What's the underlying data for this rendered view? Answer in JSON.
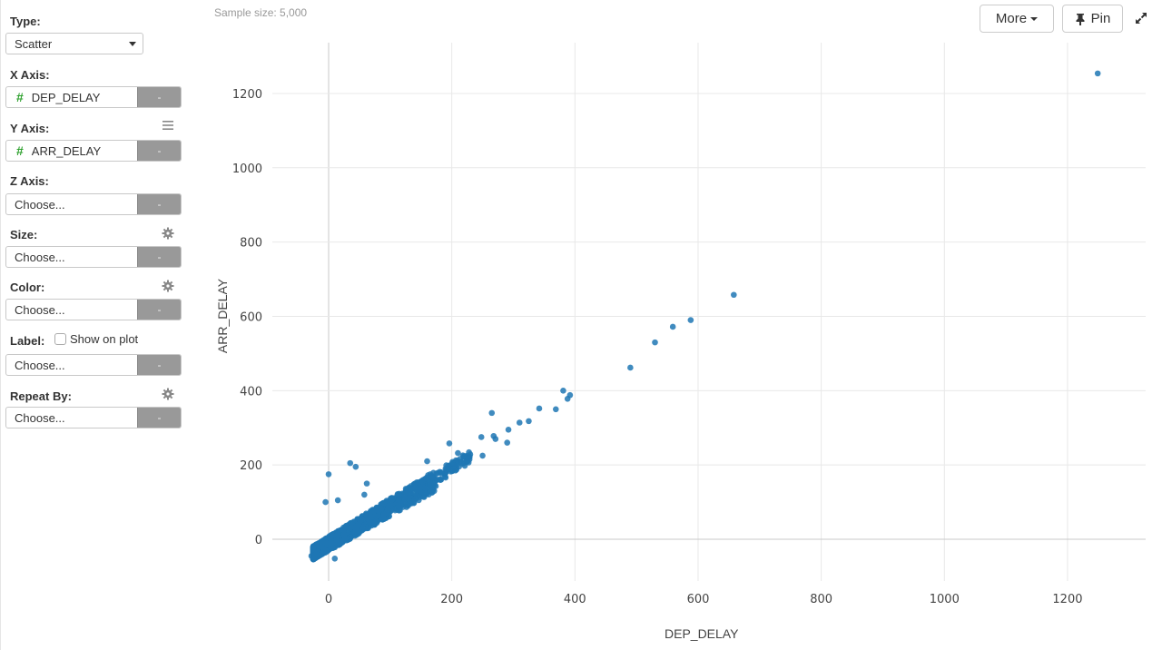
{
  "sidebar": {
    "type": {
      "label": "Type:",
      "value": "Scatter"
    },
    "x_axis": {
      "label": "X Axis:",
      "value": "DEP_DELAY",
      "type_icon": "#",
      "remove": "-"
    },
    "y_axis": {
      "label": "Y Axis:",
      "value": "ARR_DELAY",
      "type_icon": "#",
      "remove": "-",
      "aux_icon": "menu-icon"
    },
    "z_axis": {
      "label": "Z Axis:",
      "value": "Choose...",
      "remove": "-"
    },
    "size": {
      "label": "Size:",
      "value": "Choose...",
      "remove": "-",
      "aux_icon": "gear-icon"
    },
    "color": {
      "label": "Color:",
      "value": "Choose...",
      "remove": "-",
      "aux_icon": "gear-icon"
    },
    "label": {
      "label": "Label:",
      "checkbox_label": "Show on plot",
      "checked": false,
      "value": "Choose...",
      "remove": "-"
    },
    "repeat_by": {
      "label": "Repeat By:",
      "value": "Choose...",
      "remove": "-",
      "aux_icon": "gear-icon"
    }
  },
  "header": {
    "sample_size": "Sample size: 5,000",
    "more_label": "More",
    "pin_label": "Pin"
  },
  "colors": {
    "point": "#1f77b4",
    "grid": "#e8e8e8",
    "zero_line": "#c8c8c8",
    "remove_button": "#999999",
    "number_type": "#2ca02c"
  },
  "chart_data": {
    "type": "scatter",
    "title": "",
    "xlabel": "DEP_DELAY",
    "ylabel": "ARR_DELAY",
    "x_ticks": [
      0,
      200,
      400,
      600,
      800,
      1000,
      1200
    ],
    "y_ticks": [
      0,
      200,
      400,
      600,
      800,
      1000,
      1200
    ],
    "xlim": [
      -40,
      1285
    ],
    "ylim": [
      -90,
      1310
    ],
    "grid": true,
    "legend": "none",
    "sample_size": 5000,
    "notable_points": [
      {
        "x": 1249,
        "y": 1254
      },
      {
        "x": 658,
        "y": 658
      },
      {
        "x": 588,
        "y": 590
      },
      {
        "x": 559,
        "y": 572
      },
      {
        "x": 530,
        "y": 530
      },
      {
        "x": 490,
        "y": 462
      },
      {
        "x": 381,
        "y": 400
      },
      {
        "x": 392,
        "y": 388
      },
      {
        "x": 388,
        "y": 378
      },
      {
        "x": 369,
        "y": 350
      },
      {
        "x": 342,
        "y": 352
      },
      {
        "x": 325,
        "y": 318
      },
      {
        "x": 310,
        "y": 314
      },
      {
        "x": 292,
        "y": 295
      },
      {
        "x": 265,
        "y": 340
      },
      {
        "x": 271,
        "y": 270
      },
      {
        "x": 268,
        "y": 278
      },
      {
        "x": 248,
        "y": 275
      },
      {
        "x": 290,
        "y": 260
      },
      {
        "x": 250,
        "y": 225
      },
      {
        "x": 227,
        "y": 218
      },
      {
        "x": 196,
        "y": 258
      },
      {
        "x": 210,
        "y": 232
      },
      {
        "x": 35,
        "y": 205
      },
      {
        "x": 44,
        "y": 195
      },
      {
        "x": 0,
        "y": 175
      },
      {
        "x": 160,
        "y": 210
      },
      {
        "x": 190,
        "y": 190
      },
      {
        "x": -5,
        "y": 100
      },
      {
        "x": 62,
        "y": 150
      },
      {
        "x": 58,
        "y": 120
      },
      {
        "x": 15,
        "y": 105
      },
      {
        "x": 50,
        "y": 20
      },
      {
        "x": -28,
        "y": -45
      },
      {
        "x": -20,
        "y": -40
      },
      {
        "x": 10,
        "y": -52
      }
    ],
    "trend": "strong positive linear relationship, dense cluster near (0,0) to (150,150)"
  }
}
